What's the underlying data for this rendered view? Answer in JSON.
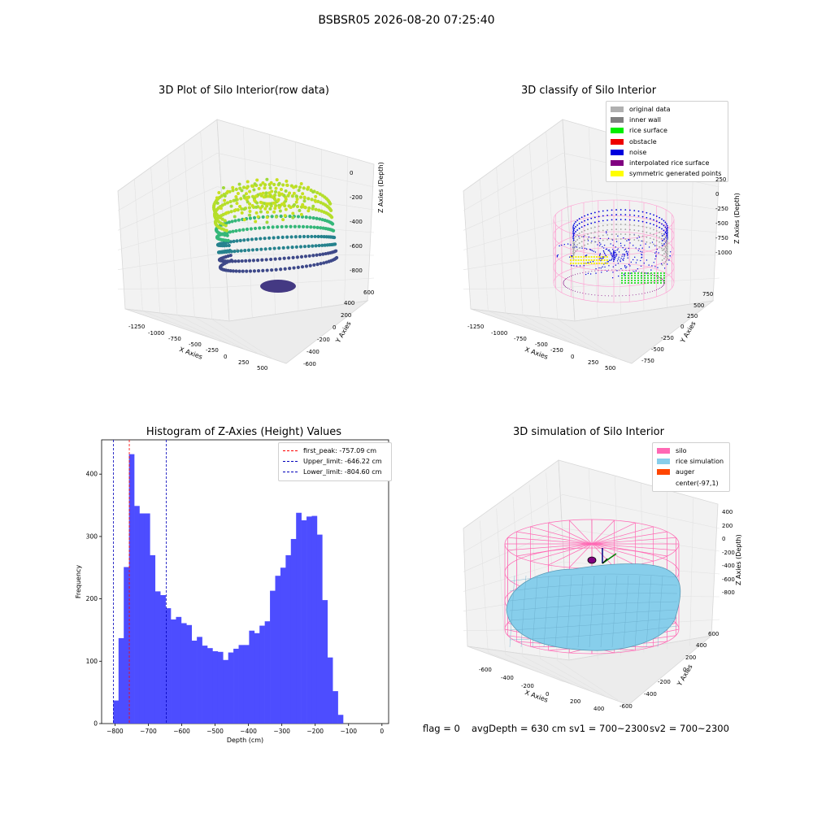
{
  "suptitle": "BSBSR05 2026-08-20 07:25:40",
  "panels": {
    "raw": {
      "title": "3D Plot of Silo Interior(row data)",
      "xlabel": "X Axies",
      "ylabel": "Y Axies",
      "zlabel": "Z Axies (Depth)",
      "xticks": [
        "-1250",
        "-1000",
        "-750",
        "-500",
        "-250",
        "0",
        "250",
        "500"
      ],
      "yticks": [
        "-600",
        "-400",
        "-200",
        "0",
        "200",
        "400",
        "600"
      ],
      "zticks": [
        "0",
        "-200",
        "-400",
        "-600",
        "-800"
      ]
    },
    "classify": {
      "title": "3D classify of Silo Interior",
      "xlabel": "X Axies",
      "ylabel": "Y Axies",
      "zlabel": "Z Axies (Depth)",
      "xticks": [
        "-1250",
        "-1000",
        "-750",
        "-500",
        "-250",
        "0",
        "250",
        "500"
      ],
      "yticks": [
        "-750",
        "-500",
        "-250",
        "0",
        "250",
        "500",
        "750"
      ],
      "zticks": [
        "250",
        "0",
        "-250",
        "-500",
        "-750",
        "-1000"
      ],
      "legend": [
        {
          "label": "original data",
          "color": "#b0b0b0"
        },
        {
          "label": "inner wall",
          "color": "#808080"
        },
        {
          "label": "rice surface",
          "color": "#00ee00"
        },
        {
          "label": "obstacle",
          "color": "#ee0000"
        },
        {
          "label": "noise",
          "color": "#0000dd"
        },
        {
          "label": "interpolated rice surface",
          "color": "#800080"
        },
        {
          "label": "symmetric generated points",
          "color": "#ffff00"
        }
      ]
    },
    "simulation": {
      "title": "3D simulation of Silo Interior",
      "xlabel": "X Axies",
      "ylabel": "Y Axies",
      "zlabel": "Z Axies (Depth)",
      "xticks": [
        "-600",
        "-400",
        "-200",
        "0",
        "200",
        "400"
      ],
      "yticks": [
        "-600",
        "-400",
        "-200",
        "0",
        "200",
        "400",
        "600"
      ],
      "zticks": [
        "400",
        "200",
        "0",
        "-200",
        "-400",
        "-600",
        "-800"
      ],
      "legend": [
        {
          "label": "silo",
          "color": "#ff69b4"
        },
        {
          "label": "rice simulation",
          "color": "#87ceeb"
        },
        {
          "label": "auger",
          "color": "#ff4500"
        },
        {
          "label": "center(-97,1)",
          "color": ""
        }
      ]
    }
  },
  "status": {
    "flag": "flag = 0",
    "avg": "avgDepth = 630 cm",
    "sv1": "sv1 = 700~2300",
    "sv2": "sv2 = 700~2300"
  },
  "chart_data": {
    "type": "bar",
    "title": "Histogram of Z-Axies (Height) Values",
    "xlabel": "Depth (cm)",
    "ylabel": "Frequency",
    "xlim": [
      -840,
      20
    ],
    "ylim": [
      0,
      455
    ],
    "xticks": [
      -800,
      -700,
      -600,
      -500,
      -400,
      -300,
      -200,
      -100,
      0
    ],
    "yticks": [
      0,
      100,
      200,
      300,
      400
    ],
    "bin_start": -805,
    "bin_width": 15.65,
    "values": [
      37,
      137,
      251,
      432,
      349,
      337,
      337,
      270,
      212,
      206,
      185,
      167,
      171,
      161,
      158,
      133,
      139,
      125,
      121,
      116,
      115,
      102,
      114,
      120,
      126,
      126,
      149,
      145,
      157,
      164,
      213,
      237,
      250,
      270,
      296,
      338,
      326,
      332,
      333,
      303,
      198,
      106,
      52,
      14
    ],
    "color": "#4d4dff",
    "lines": [
      {
        "label": "first_peak: -757.09 cm",
        "value": -757.09,
        "color": "#ff0000"
      },
      {
        "label": "Upper_limit: -646.22 cm",
        "value": -646.22,
        "color": "#0000bb"
      },
      {
        "label": "Lower_limit: -804.60 cm",
        "value": -804.6,
        "color": "#0000bb"
      }
    ],
    "legend_position": "top-right"
  }
}
